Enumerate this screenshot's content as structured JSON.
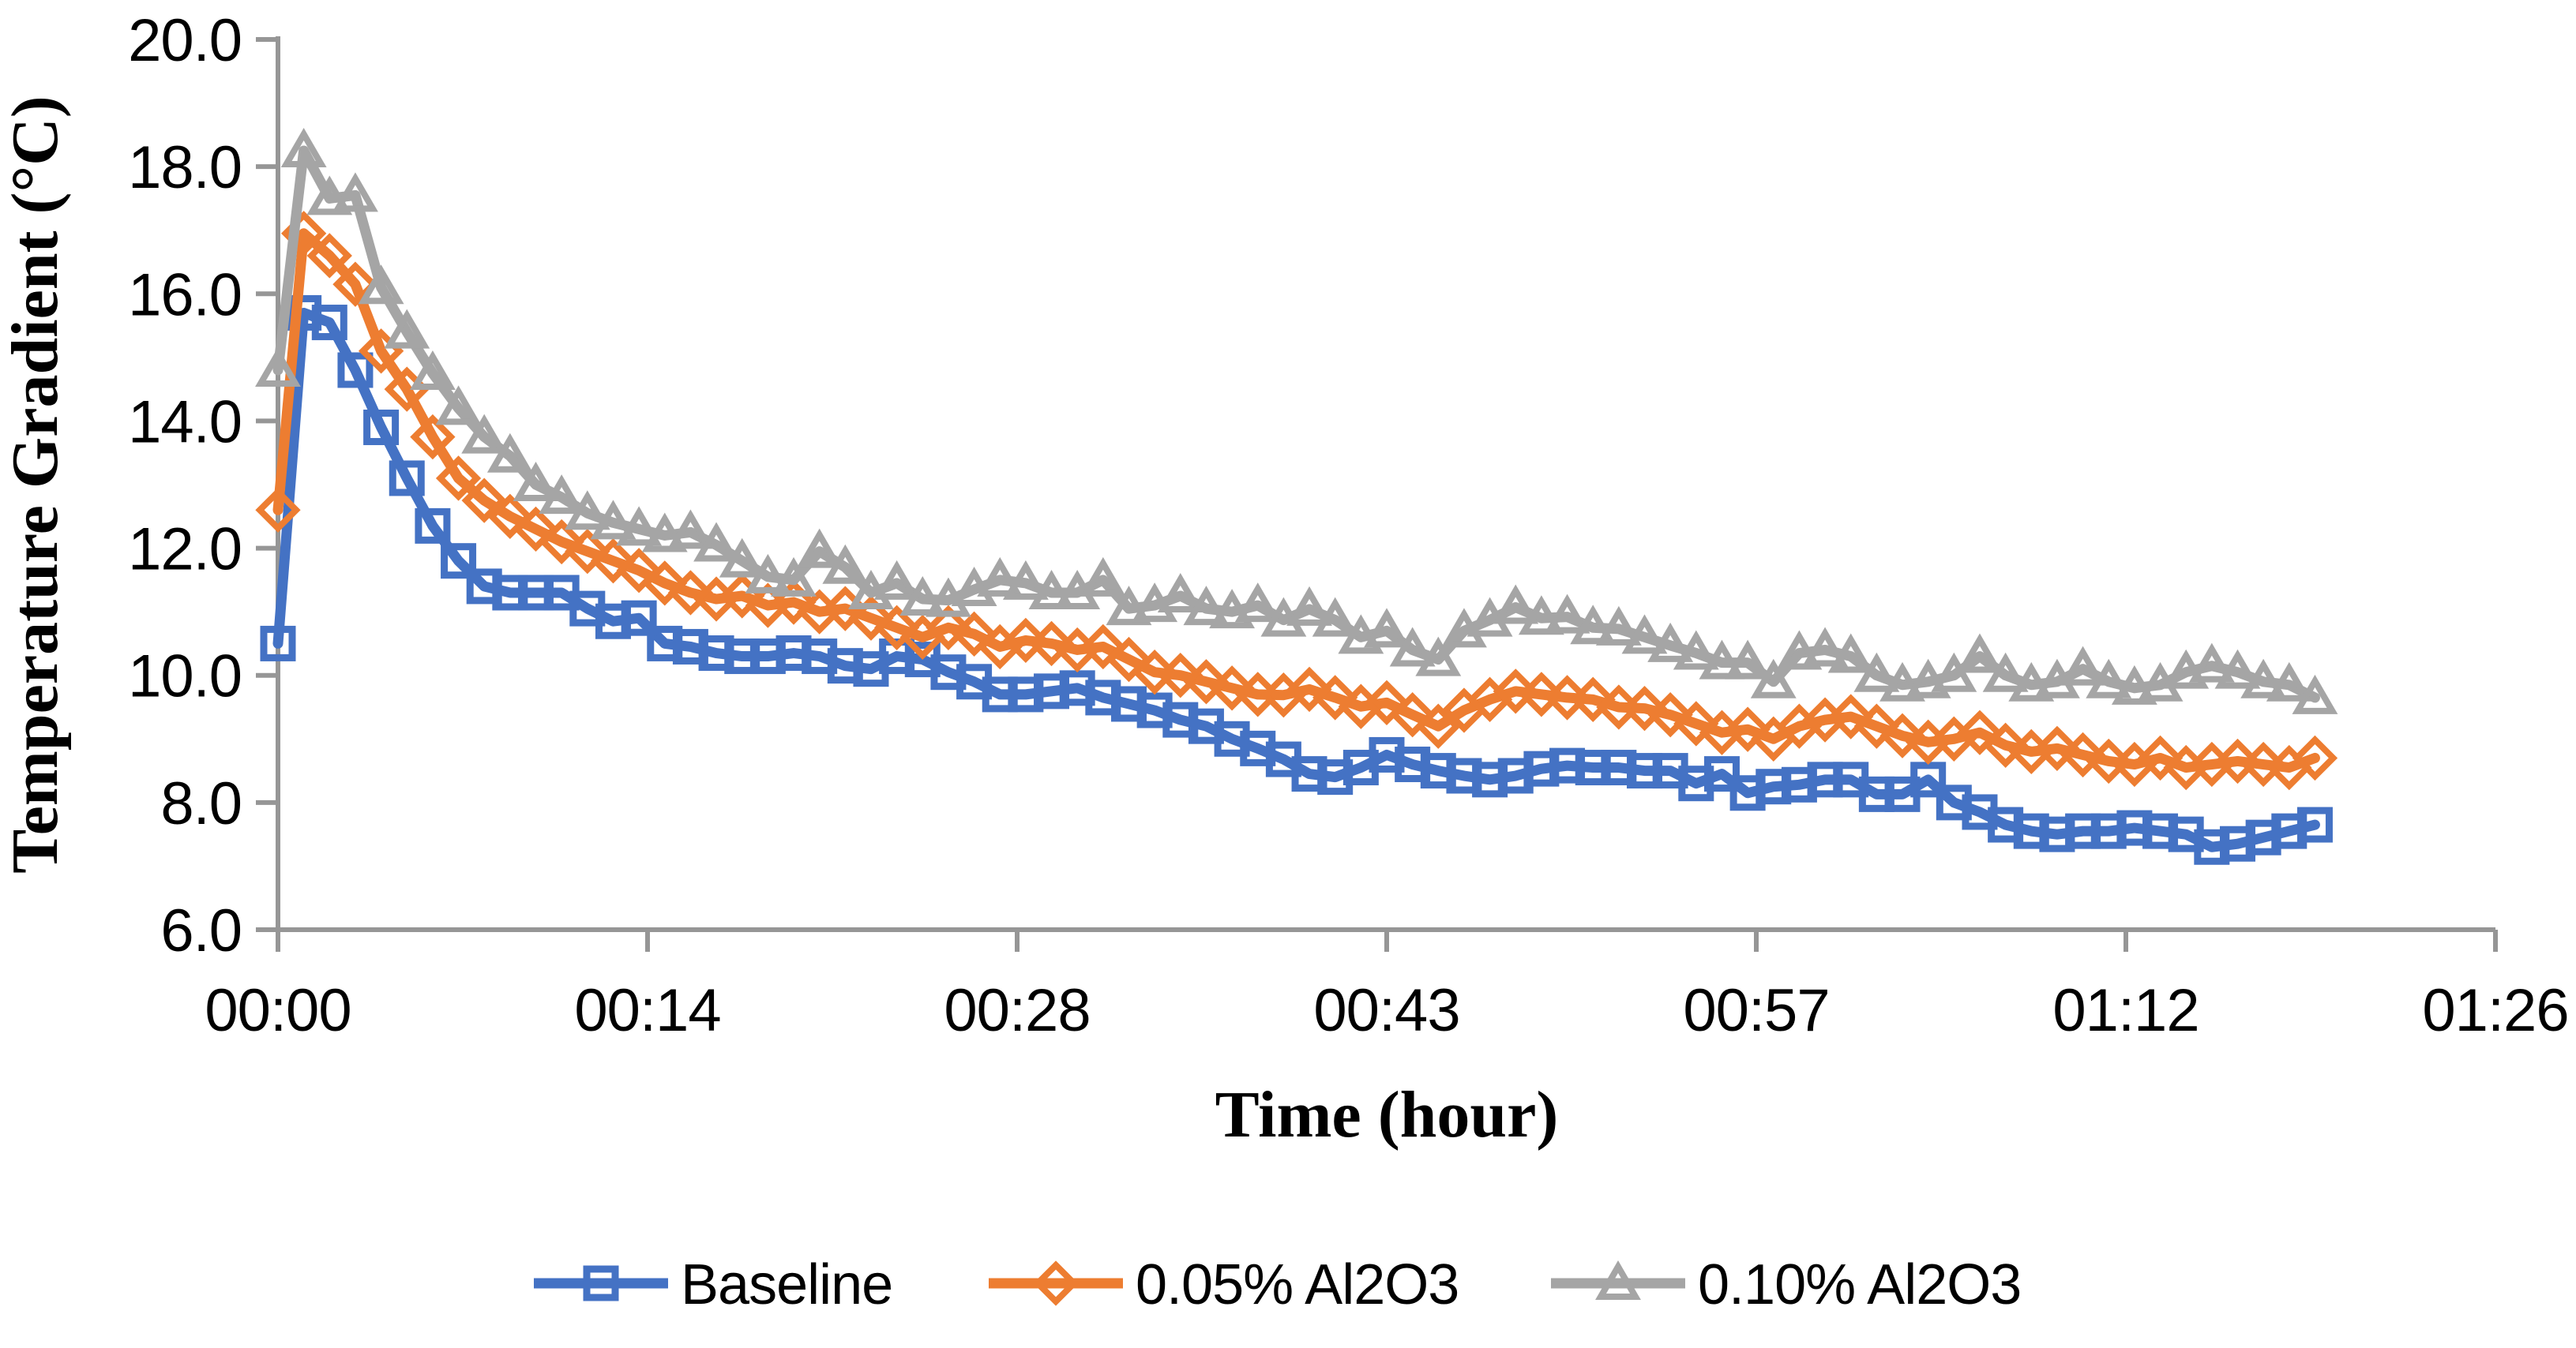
{
  "figure": {
    "background": "#FFFFFF",
    "text_color": "#000000",
    "axis_color": "#969696"
  },
  "chart_data": {
    "type": "line",
    "title": "",
    "xlabel": "Time (hour)",
    "ylabel": "Temperature Gradient (°C)",
    "grid": "off",
    "legend_position": "bottom",
    "ylim": [
      6.0,
      20.0
    ],
    "y_tick_step": 2.0,
    "y_tick_labels": [
      "20.0",
      "18.0",
      "16.0",
      "14.0",
      "12.0",
      "10.0",
      "8.0",
      "6.0"
    ],
    "x_tick_labels": [
      "00:00",
      "00:14",
      "00:28",
      "00:43",
      "00:57",
      "01:12",
      "01:26"
    ],
    "x_axis_span_minutes": [
      0,
      86
    ],
    "sample_interval_minutes": 1,
    "series": [
      {
        "name": "Baseline",
        "color": "#4472C4",
        "marker": "square",
        "values": [
          10.5,
          15.7,
          15.55,
          14.8,
          13.9,
          13.1,
          12.35,
          11.8,
          11.4,
          11.3,
          11.3,
          11.3,
          11.05,
          10.85,
          10.9,
          10.5,
          10.45,
          10.35,
          10.3,
          10.3,
          10.35,
          10.3,
          10.15,
          10.1,
          10.3,
          10.25,
          10.05,
          9.9,
          9.7,
          9.7,
          9.75,
          9.8,
          9.65,
          9.55,
          9.45,
          9.3,
          9.2,
          9.0,
          8.85,
          8.68,
          8.45,
          8.4,
          8.55,
          8.75,
          8.6,
          8.5,
          8.42,
          8.36,
          8.42,
          8.53,
          8.58,
          8.55,
          8.55,
          8.5,
          8.5,
          8.3,
          8.45,
          8.15,
          8.25,
          8.28,
          8.36,
          8.36,
          8.13,
          8.13,
          8.36,
          8.0,
          7.85,
          7.65,
          7.55,
          7.5,
          7.55,
          7.55,
          7.6,
          7.55,
          7.5,
          7.3,
          7.35,
          7.45,
          7.55,
          7.65
        ]
      },
      {
        "name": "0.05% Al2O3",
        "color": "#ED7D31",
        "marker": "diamond",
        "values": [
          12.6,
          16.95,
          16.6,
          16.15,
          15.1,
          14.5,
          13.75,
          13.1,
          12.75,
          12.5,
          12.3,
          12.1,
          11.95,
          11.8,
          11.65,
          11.45,
          11.3,
          11.2,
          11.25,
          11.1,
          11.15,
          11.0,
          11.05,
          10.9,
          10.75,
          10.6,
          10.75,
          10.65,
          10.45,
          10.55,
          10.5,
          10.4,
          10.45,
          10.25,
          10.05,
          10.0,
          9.9,
          9.8,
          9.7,
          9.69,
          9.78,
          9.65,
          9.51,
          9.57,
          9.38,
          9.2,
          9.45,
          9.62,
          9.75,
          9.7,
          9.65,
          9.62,
          9.5,
          9.48,
          9.38,
          9.24,
          9.1,
          9.15,
          9.0,
          9.2,
          9.3,
          9.35,
          9.2,
          9.05,
          8.95,
          9.0,
          9.1,
          8.9,
          8.8,
          8.85,
          8.75,
          8.65,
          8.6,
          8.7,
          8.55,
          8.6,
          8.65,
          8.6,
          8.55,
          8.7
        ]
      },
      {
        "name": "0.10% Al2O3",
        "color": "#A5A5A5",
        "marker": "triangle",
        "values": [
          14.8,
          18.25,
          17.5,
          17.55,
          16.1,
          15.4,
          14.75,
          14.2,
          13.75,
          13.45,
          13.0,
          12.8,
          12.55,
          12.4,
          12.3,
          12.2,
          12.25,
          12.05,
          11.8,
          11.55,
          11.5,
          11.95,
          11.7,
          11.3,
          11.45,
          11.2,
          11.18,
          11.35,
          11.5,
          11.45,
          11.3,
          11.3,
          11.5,
          11.05,
          11.1,
          11.25,
          11.05,
          11.0,
          11.1,
          10.87,
          11.04,
          10.87,
          10.6,
          10.7,
          10.4,
          10.25,
          10.7,
          10.87,
          11.07,
          10.9,
          10.92,
          10.75,
          10.73,
          10.6,
          10.47,
          10.35,
          10.2,
          10.2,
          9.9,
          10.35,
          10.4,
          10.3,
          10.0,
          9.85,
          9.9,
          10.0,
          10.3,
          10.0,
          9.85,
          9.9,
          10.1,
          9.9,
          9.8,
          9.85,
          10.05,
          10.15,
          10.05,
          9.9,
          9.85,
          9.65
        ]
      }
    ]
  }
}
